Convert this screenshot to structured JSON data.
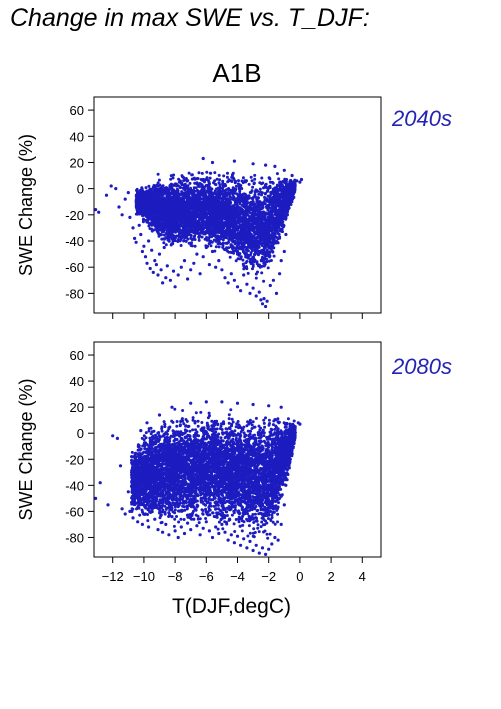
{
  "figure": {
    "title": "Change in max SWE vs. T_DJF:",
    "scenario": "A1B",
    "point_color": "#1c1cc0",
    "label_color": "#2323b4"
  },
  "chart_data": [
    {
      "type": "scatter",
      "period_label": "2040s",
      "ylabel": "SWE Change (%)",
      "xlabel": "",
      "xlim": [
        -13.2,
        5.2
      ],
      "ylim": [
        -95,
        70
      ],
      "x_ticks": [
        -12,
        -10,
        -8,
        -6,
        -4,
        -2,
        0,
        2,
        4
      ],
      "y_ticks": [
        -80,
        -60,
        -40,
        -20,
        0,
        20,
        40,
        60
      ],
      "x_tick_labels_shown": false,
      "grid": false,
      "legend": "none",
      "points": [
        [
          -13.1,
          -16
        ],
        [
          -12.9,
          -18
        ],
        [
          -12.4,
          -5
        ],
        [
          -12.1,
          2
        ],
        [
          -11.8,
          0
        ],
        [
          -11.6,
          -14
        ],
        [
          -11.4,
          -20
        ],
        [
          -11.2,
          -8
        ],
        [
          -11.0,
          -3
        ],
        [
          -10.9,
          -22
        ],
        [
          -10.7,
          -30
        ],
        [
          -10.6,
          -38
        ],
        [
          -10.5,
          -41
        ],
        [
          -10.3,
          -28
        ],
        [
          -10.2,
          -35
        ],
        [
          -10.1,
          -48
        ],
        [
          -10.0,
          -44
        ],
        [
          -9.9,
          -52
        ],
        [
          -9.8,
          -57
        ],
        [
          -9.7,
          -40
        ],
        [
          -9.6,
          -61
        ],
        [
          -9.5,
          -47
        ],
        [
          -9.4,
          -64
        ],
        [
          -9.3,
          -55
        ],
        [
          -9.2,
          -58
        ],
        [
          -9.1,
          -66
        ],
        [
          -9.0,
          -50
        ],
        [
          -8.9,
          -62
        ],
        [
          -8.8,
          -72
        ],
        [
          -8.7,
          -45
        ],
        [
          -8.6,
          -68
        ],
        [
          -8.5,
          -59
        ],
        [
          -8.3,
          -70
        ],
        [
          -8.1,
          -63
        ],
        [
          -8.0,
          -75
        ],
        [
          -7.8,
          -66
        ],
        [
          -7.6,
          -60
        ],
        [
          -7.4,
          -55
        ],
        [
          -7.2,
          -69
        ],
        [
          -7.0,
          -62
        ],
        [
          -6.8,
          -57
        ],
        [
          -6.6,
          -50
        ],
        [
          -6.4,
          -65
        ],
        [
          -6.2,
          -52
        ],
        [
          -6.0,
          -45
        ],
        [
          -5.8,
          -58
        ],
        [
          -5.6,
          -48
        ],
        [
          -5.4,
          -60
        ],
        [
          -5.2,
          -55
        ],
        [
          -5.0,
          -62
        ],
        [
          -4.8,
          -68
        ],
        [
          -4.6,
          -72
        ],
        [
          -4.4,
          -65
        ],
        [
          -4.2,
          -70
        ],
        [
          -4.0,
          -75
        ],
        [
          -3.8,
          -78
        ],
        [
          -3.6,
          -66
        ],
        [
          -3.4,
          -73
        ],
        [
          -3.2,
          -80
        ],
        [
          -3.0,
          -76
        ],
        [
          -2.8,
          -82
        ],
        [
          -2.6,
          -79
        ],
        [
          -2.5,
          -85
        ],
        [
          -2.4,
          -88
        ],
        [
          -2.3,
          -84
        ],
        [
          -2.2,
          -90
        ],
        [
          -2.1,
          -86
        ],
        [
          -1.9,
          -74
        ],
        [
          -1.7,
          -70
        ],
        [
          -1.5,
          -80
        ],
        [
          -1.3,
          -65
        ],
        [
          -1.2,
          -55
        ],
        [
          -1.0,
          -48
        ],
        [
          -0.9,
          -35
        ],
        [
          -0.8,
          -20
        ],
        [
          -0.7,
          -10
        ],
        [
          -0.6,
          -2
        ],
        [
          -0.4,
          3
        ],
        [
          -0.2,
          6
        ],
        [
          0.0,
          5
        ],
        [
          0.1,
          7
        ],
        [
          -6.2,
          23
        ],
        [
          -5.6,
          20
        ],
        [
          -4.2,
          21
        ],
        [
          -3.0,
          19
        ],
        [
          -2.2,
          18
        ],
        [
          -1.6,
          17
        ],
        [
          -1.0,
          14
        ],
        [
          -0.5,
          10
        ]
      ],
      "dense_region": {
        "x_range": [
          -10.5,
          -0.3
        ],
        "y_top_at_x": [
          [
            -10.5,
            2
          ],
          [
            -9.5,
            8
          ],
          [
            -8.5,
            15
          ],
          [
            -7.5,
            17
          ],
          [
            -6,
            18
          ],
          [
            -4,
            18
          ],
          [
            -2.5,
            18
          ],
          [
            -1.5,
            16
          ],
          [
            -0.8,
            12
          ],
          [
            -0.3,
            8
          ]
        ],
        "y_bottom_at_x": [
          [
            -10.5,
            -20
          ],
          [
            -9.5,
            -38
          ],
          [
            -8.5,
            -50
          ],
          [
            -7.5,
            -52
          ],
          [
            -6,
            -50
          ],
          [
            -5,
            -55
          ],
          [
            -4,
            -65
          ],
          [
            -3,
            -75
          ],
          [
            -2.2,
            -80
          ],
          [
            -1.5,
            -55
          ],
          [
            -0.8,
            -25
          ],
          [
            -0.3,
            -5
          ]
        ],
        "center_y": -12,
        "n_points": 5200
      }
    },
    {
      "type": "scatter",
      "period_label": "2080s",
      "ylabel": "SWE Change (%)",
      "xlabel": "T(DJF,degC)",
      "xlim": [
        -13.2,
        5.2
      ],
      "ylim": [
        -95,
        70
      ],
      "x_ticks": [
        -12,
        -10,
        -8,
        -6,
        -4,
        -2,
        0,
        2,
        4
      ],
      "y_ticks": [
        -80,
        -60,
        -40,
        -20,
        0,
        20,
        40,
        60
      ],
      "x_tick_labels_shown": true,
      "grid": false,
      "legend": "none",
      "points": [
        [
          -13.1,
          -50
        ],
        [
          -12.8,
          -38
        ],
        [
          -12.3,
          -55
        ],
        [
          -12.0,
          -2
        ],
        [
          -11.7,
          -4
        ],
        [
          -11.5,
          -25
        ],
        [
          -11.4,
          -58
        ],
        [
          -11.2,
          -62
        ],
        [
          -11.0,
          -45
        ],
        [
          -10.9,
          -60
        ],
        [
          -10.7,
          -65
        ],
        [
          -10.6,
          -30
        ],
        [
          -10.4,
          -68
        ],
        [
          -10.3,
          -55
        ],
        [
          -10.1,
          -70
        ],
        [
          -10.0,
          -20
        ],
        [
          -9.9,
          -62
        ],
        [
          -9.7,
          -72
        ],
        [
          -9.5,
          -15
        ],
        [
          -9.3,
          -66
        ],
        [
          -9.1,
          -74
        ],
        [
          -9.0,
          -58
        ],
        [
          -8.8,
          -76
        ],
        [
          -8.6,
          -70
        ],
        [
          -8.4,
          -78
        ],
        [
          -8.2,
          -64
        ],
        [
          -8.0,
          -75
        ],
        [
          -7.8,
          -80
        ],
        [
          -7.6,
          -72
        ],
        [
          -7.4,
          -77
        ],
        [
          -7.2,
          -69
        ],
        [
          -7.0,
          -74
        ],
        [
          -6.8,
          -66
        ],
        [
          -6.6,
          -71
        ],
        [
          -6.4,
          -78
        ],
        [
          -6.2,
          -73
        ],
        [
          -6.0,
          -68
        ],
        [
          -5.8,
          -75
        ],
        [
          -5.6,
          -80
        ],
        [
          -5.4,
          -72
        ],
        [
          -5.2,
          -77
        ],
        [
          -5.0,
          -70
        ],
        [
          -4.8,
          -76
        ],
        [
          -4.6,
          -82
        ],
        [
          -4.4,
          -78
        ],
        [
          -4.2,
          -84
        ],
        [
          -4.0,
          -79
        ],
        [
          -3.8,
          -86
        ],
        [
          -3.6,
          -81
        ],
        [
          -3.4,
          -88
        ],
        [
          -3.2,
          -83
        ],
        [
          -3.0,
          -90
        ],
        [
          -2.8,
          -86
        ],
        [
          -2.6,
          -92
        ],
        [
          -2.4,
          -88
        ],
        [
          -2.2,
          -93
        ],
        [
          -2.0,
          -89
        ],
        [
          -1.8,
          -85
        ],
        [
          -1.6,
          -80
        ],
        [
          -1.4,
          -82
        ],
        [
          -1.2,
          -70
        ],
        [
          -1.0,
          -55
        ],
        [
          -0.9,
          -40
        ],
        [
          -0.7,
          -25
        ],
        [
          -0.6,
          -10
        ],
        [
          -0.5,
          2
        ],
        [
          -0.3,
          5
        ],
        [
          -0.1,
          8
        ],
        [
          0.0,
          7
        ],
        [
          -10.2,
          2
        ],
        [
          -9.8,
          8
        ],
        [
          -9.0,
          14
        ],
        [
          -8.2,
          20
        ],
        [
          -7.0,
          23
        ],
        [
          -6.0,
          24
        ],
        [
          -5.0,
          24
        ],
        [
          -4.0,
          23
        ],
        [
          -3.0,
          22
        ],
        [
          -2.0,
          21
        ],
        [
          -1.2,
          20
        ]
      ],
      "dense_region": {
        "x_range": [
          -10.8,
          -0.3
        ],
        "y_top_at_x": [
          [
            -10.8,
            -10
          ],
          [
            -10,
            5
          ],
          [
            -9,
            15
          ],
          [
            -8,
            22
          ],
          [
            -7,
            24
          ],
          [
            -5.5,
            24
          ],
          [
            -4,
            23
          ],
          [
            -2.5,
            22
          ],
          [
            -1.5,
            20
          ],
          [
            -0.8,
            14
          ],
          [
            -0.3,
            8
          ]
        ],
        "y_bottom_at_x": [
          [
            -10.8,
            -65
          ],
          [
            -10,
            -72
          ],
          [
            -9,
            -76
          ],
          [
            -8,
            -78
          ],
          [
            -7,
            -76
          ],
          [
            -6,
            -78
          ],
          [
            -5,
            -80
          ],
          [
            -4,
            -85
          ],
          [
            -3,
            -88
          ],
          [
            -2.2,
            -90
          ],
          [
            -1.5,
            -78
          ],
          [
            -0.8,
            -40
          ],
          [
            -0.3,
            -5
          ]
        ],
        "center_y": -22,
        "n_points": 6000
      }
    }
  ]
}
